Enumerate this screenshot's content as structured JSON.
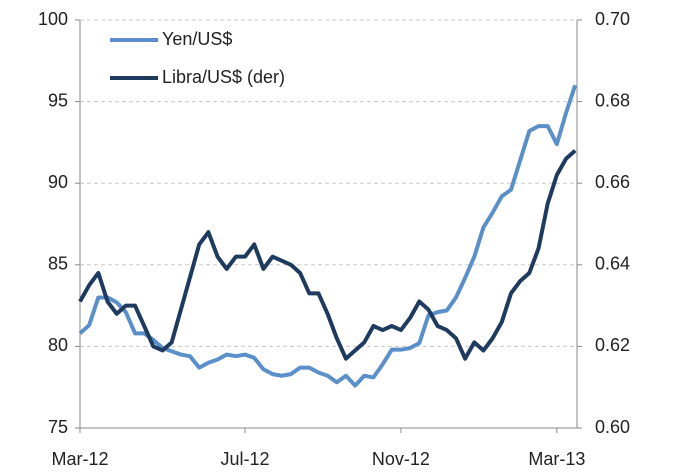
{
  "chart_data": {
    "type": "line",
    "categories": [
      "Mar-12",
      null,
      null,
      null,
      null,
      null,
      null,
      null,
      null,
      null,
      null,
      null,
      null,
      null,
      null,
      null,
      null,
      null,
      "Jul-12",
      null,
      null,
      null,
      null,
      null,
      null,
      null,
      null,
      null,
      null,
      null,
      null,
      null,
      null,
      null,
      null,
      "Nov-12",
      null,
      null,
      null,
      null,
      null,
      null,
      null,
      null,
      null,
      null,
      null,
      null,
      null,
      null,
      null,
      null,
      "Mar-13",
      null,
      null
    ],
    "series": [
      {
        "name": "Yen/US$",
        "color": "#5b8fc9",
        "axis": "y",
        "values": [
          80.8,
          81.3,
          83.0,
          83.0,
          82.7,
          82.1,
          80.8,
          80.8,
          80.4,
          79.9,
          79.7,
          79.5,
          79.4,
          78.7,
          79.0,
          79.2,
          79.5,
          79.4,
          79.5,
          79.3,
          78.6,
          78.3,
          78.2,
          78.3,
          78.7,
          78.7,
          78.4,
          78.2,
          77.8,
          78.2,
          77.6,
          78.2,
          78.1,
          78.9,
          79.8,
          79.8,
          79.9,
          80.2,
          81.9,
          82.1,
          82.2,
          83.0,
          84.2,
          85.5,
          87.3,
          88.2,
          89.2,
          89.6,
          91.4,
          93.2,
          93.5,
          93.5,
          92.4,
          94.3,
          96.0
        ]
      },
      {
        "name": "Libra/US$ (der)",
        "color": "#1f3a5f",
        "axis": "y2",
        "values": [
          0.631,
          0.635,
          0.638,
          0.631,
          0.628,
          0.63,
          0.63,
          0.625,
          0.62,
          0.619,
          0.621,
          0.629,
          0.637,
          0.645,
          0.648,
          0.642,
          0.639,
          0.642,
          0.642,
          0.645,
          0.639,
          0.642,
          0.641,
          0.64,
          0.638,
          0.633,
          0.633,
          0.628,
          0.622,
          0.617,
          0.619,
          0.621,
          0.625,
          0.624,
          0.625,
          0.624,
          0.627,
          0.631,
          0.629,
          0.625,
          0.624,
          0.622,
          0.617,
          0.621,
          0.619,
          0.622,
          0.626,
          0.633,
          0.636,
          0.638,
          0.644,
          0.655,
          0.662,
          0.666,
          0.668
        ]
      }
    ],
    "ylim": [
      75,
      100
    ],
    "yticks": [
      75,
      80,
      85,
      90,
      95,
      100
    ],
    "y2lim": [
      0.6,
      0.7
    ],
    "y2ticks": [
      {
        "value": 0.6,
        "label": "0.60"
      },
      0.62,
      0.64,
      0.66,
      0.68,
      {
        "value": 0.7,
        "label": "0.70"
      }
    ],
    "grid": true,
    "legend": "upper left"
  }
}
